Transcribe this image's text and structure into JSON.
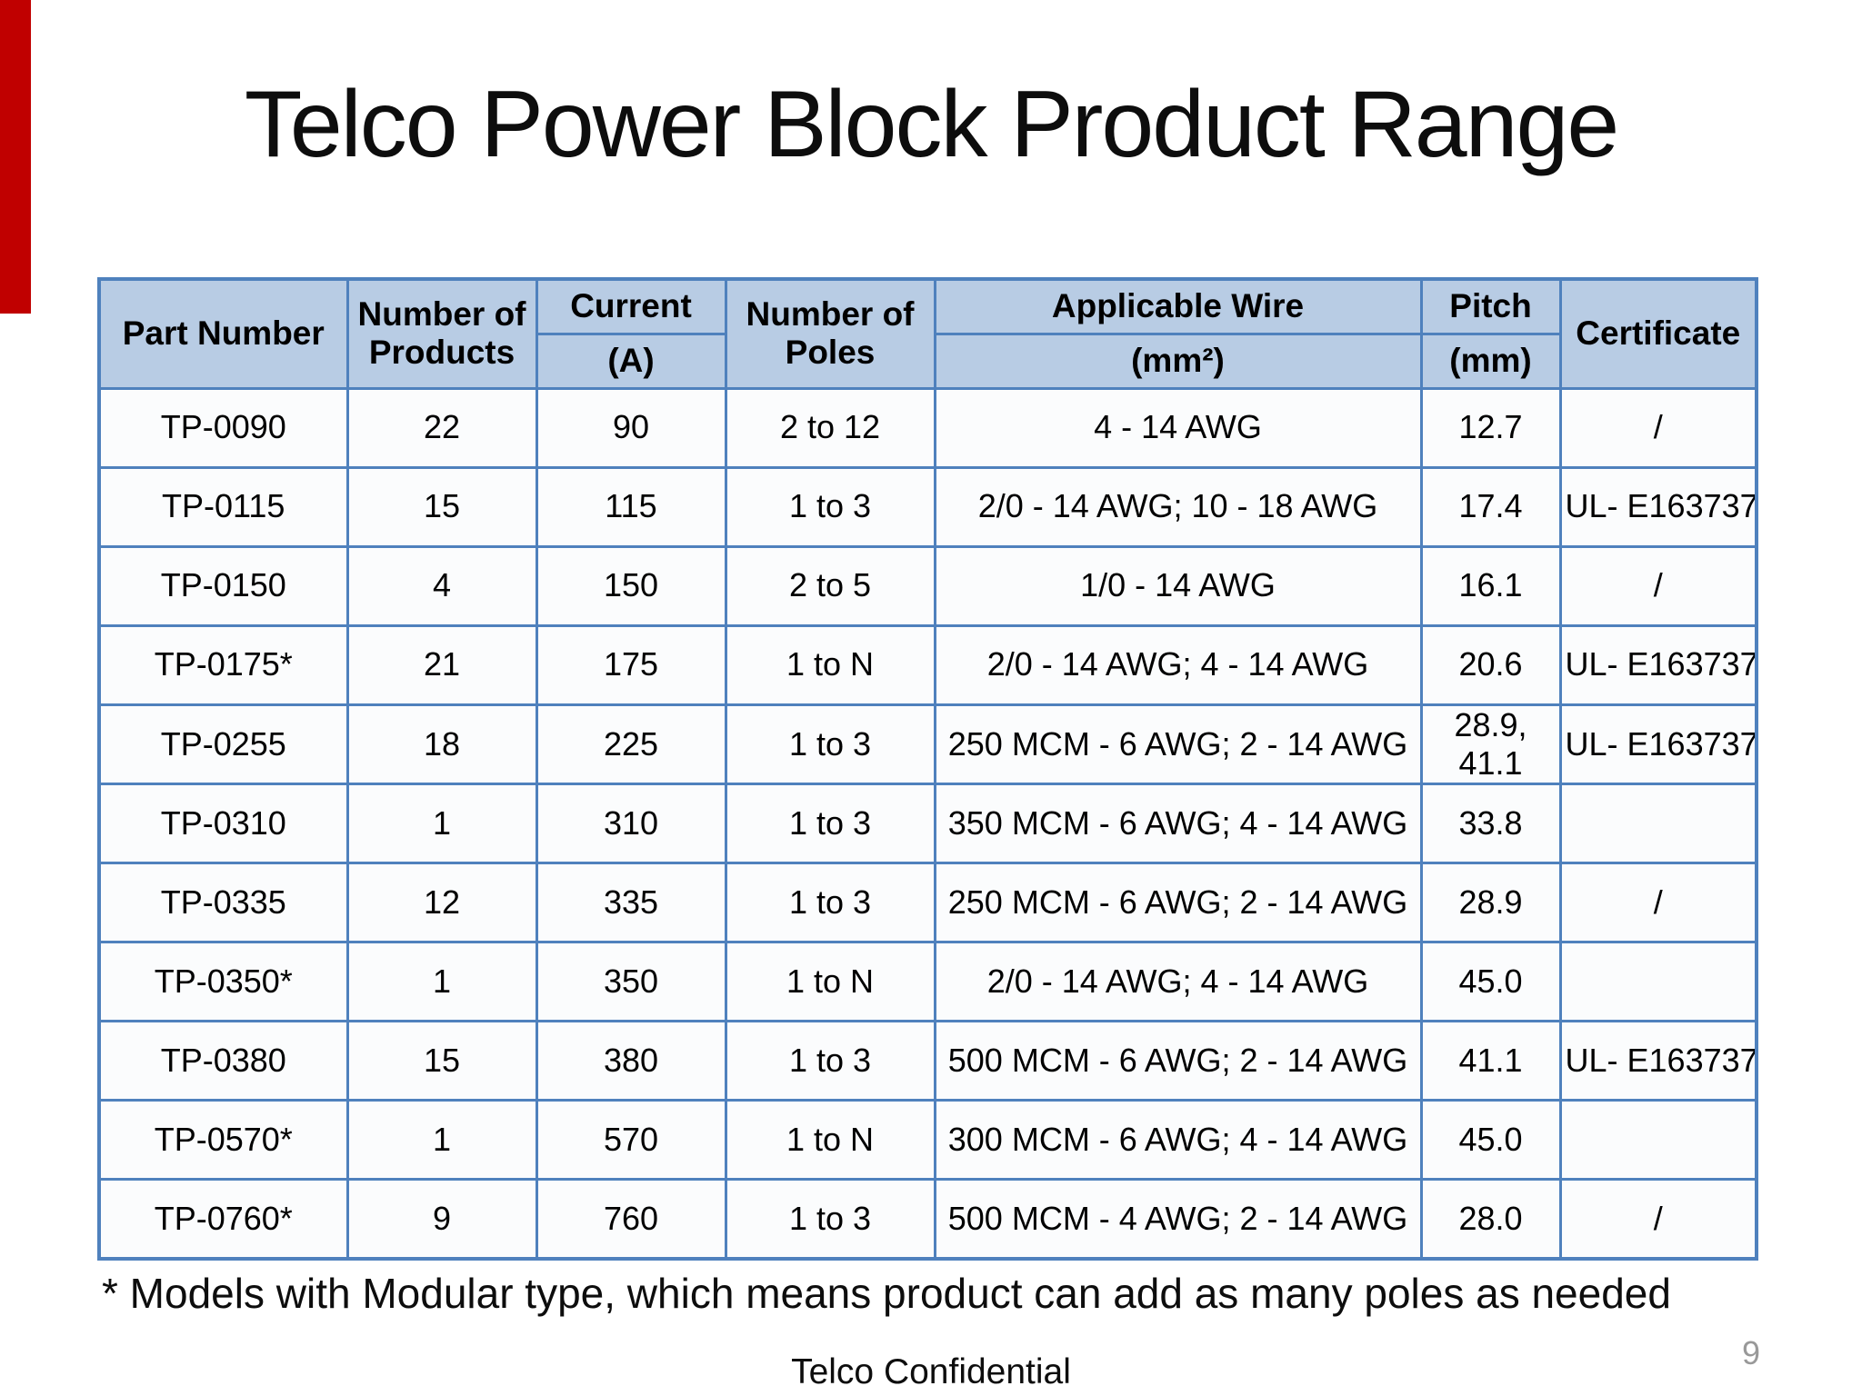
{
  "slide": {
    "title": "Telco Power Block Product Range",
    "footnote": "* Models with Modular type, which means product can add as many poles as needed",
    "footer": "Telco Confidential",
    "page_number": "9"
  },
  "table": {
    "columns": [
      {
        "label": "Part Number",
        "sub": null
      },
      {
        "label": "Number of Products",
        "sub": null
      },
      {
        "label": "Current",
        "sub": "(A)"
      },
      {
        "label": "Number of Poles",
        "sub": null
      },
      {
        "label": "Applicable Wire",
        "sub": "(mm²)"
      },
      {
        "label": "Pitch",
        "sub": "(mm)"
      },
      {
        "label": "Certificate",
        "sub": null
      }
    ],
    "rows": [
      [
        "TP-0090",
        "22",
        "90",
        "2 to 12",
        "4 - 14 AWG",
        "12.7",
        "/"
      ],
      [
        "TP-0115",
        "15",
        "115",
        "1 to 3",
        "2/0 - 14 AWG; 10 - 18 AWG",
        "17.4",
        "UL- E163737"
      ],
      [
        "TP-0150",
        "4",
        "150",
        "2 to 5",
        "1/0 - 14 AWG",
        "16.1",
        "/"
      ],
      [
        "TP-0175*",
        "21",
        "175",
        "1 to N",
        "2/0 - 14 AWG; 4 - 14 AWG",
        "20.6",
        "UL- E163737"
      ],
      [
        "TP-0255",
        "18",
        "225",
        "1 to 3",
        "250 MCM - 6 AWG; 2 - 14 AWG",
        "28.9, 41.1",
        "UL- E163737"
      ],
      [
        "TP-0310",
        "1",
        "310",
        "1 to 3",
        "350 MCM - 6 AWG; 4 - 14 AWG",
        "33.8",
        ""
      ],
      [
        "TP-0335",
        "12",
        "335",
        "1 to 3",
        "250 MCM - 6 AWG; 2 - 14 AWG",
        "28.9",
        "/"
      ],
      [
        "TP-0350*",
        "1",
        "350",
        "1 to N",
        "2/0 - 14 AWG; 4 - 14 AWG",
        "45.0",
        ""
      ],
      [
        "TP-0380",
        "15",
        "380",
        "1 to 3",
        "500 MCM - 6 AWG; 2 - 14 AWG",
        "41.1",
        "UL- E163737"
      ],
      [
        "TP-0570*",
        "1",
        "570",
        "1 to N",
        "300 MCM - 6 AWG; 4 - 14 AWG",
        "45.0",
        ""
      ],
      [
        "TP-0760*",
        "9",
        "760",
        "1 to 3",
        "500 MCM - 4 AWG; 2 - 14 AWG",
        "28.0",
        "/"
      ]
    ]
  },
  "colors": {
    "border_blue": "#4f81bd",
    "header_fill": "#b8cce4",
    "cell_fill": "#fbfcfd",
    "accent_red": "#c00000",
    "page_num_gray": "#999999"
  }
}
